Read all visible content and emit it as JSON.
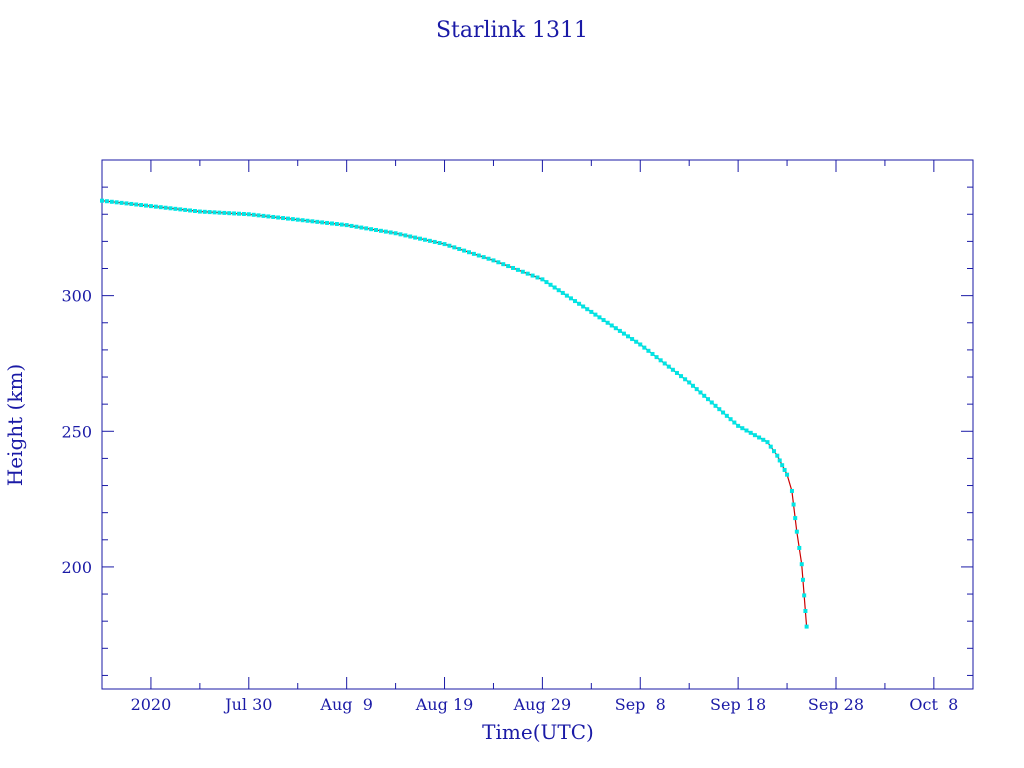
{
  "chart_data": {
    "type": "line",
    "title": "Starlink 1311",
    "xlabel": "Time(UTC)",
    "ylabel": "Height (km)",
    "xlim": [
      "2020-07-15",
      "2020-10-12"
    ],
    "ylim": [
      155,
      350
    ],
    "x_ticks": [
      {
        "date": "2020-07-20",
        "label": "2020"
      },
      {
        "date": "2020-07-30",
        "label": "Jul 30"
      },
      {
        "date": "2020-08-09",
        "label": "Aug  9"
      },
      {
        "date": "2020-08-19",
        "label": "Aug 19"
      },
      {
        "date": "2020-08-29",
        "label": "Aug 29"
      },
      {
        "date": "2020-09-08",
        "label": "Sep  8"
      },
      {
        "date": "2020-09-18",
        "label": "Sep 18"
      },
      {
        "date": "2020-09-28",
        "label": "Sep 28"
      },
      {
        "date": "2020-10-08",
        "label": "Oct  8"
      }
    ],
    "y_ticks": [
      200,
      250,
      300
    ],
    "grid": false,
    "colors": {
      "axes": "#1a1aa6",
      "line": "#cc0000",
      "markers": "#00e5e5"
    },
    "series": [
      {
        "points": [
          {
            "date": "2020-07-15",
            "height": 335
          },
          {
            "date": "2020-07-20",
            "height": 333
          },
          {
            "date": "2020-07-25",
            "height": 331
          },
          {
            "date": "2020-07-30",
            "height": 330
          },
          {
            "date": "2020-08-04",
            "height": 328
          },
          {
            "date": "2020-08-09",
            "height": 326
          },
          {
            "date": "2020-08-14",
            "height": 323
          },
          {
            "date": "2020-08-19",
            "height": 319
          },
          {
            "date": "2020-08-24",
            "height": 313
          },
          {
            "date": "2020-08-29",
            "height": 306
          },
          {
            "date": "2020-09-03",
            "height": 294
          },
          {
            "date": "2020-09-08",
            "height": 282
          },
          {
            "date": "2020-09-13",
            "height": 268
          },
          {
            "date": "2020-09-18",
            "height": 252
          },
          {
            "date": "2020-09-21",
            "height": 246
          },
          {
            "date": "2020-09-22",
            "height": 241
          },
          {
            "date": "2020-09-23",
            "height": 234
          },
          {
            "date": "2020-09-23.5",
            "height": 228
          },
          {
            "date": "2020-09-24",
            "height": 213
          },
          {
            "date": "2020-09-24.5",
            "height": 201
          },
          {
            "date": "2020-09-25",
            "height": 178
          }
        ]
      }
    ]
  }
}
